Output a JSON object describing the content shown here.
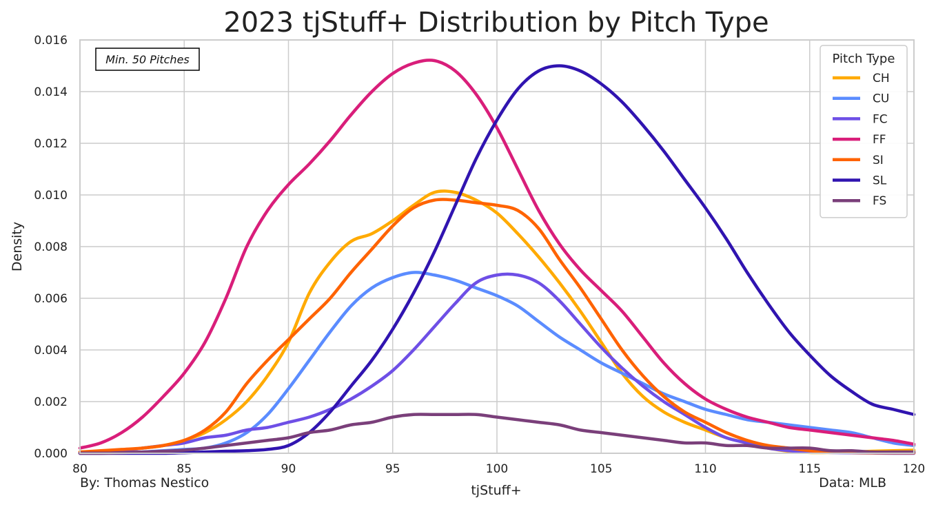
{
  "chart_data": {
    "type": "line",
    "title": "2023 tjStuff+ Distribution by Pitch Type",
    "xlabel": "tjStuff+",
    "ylabel": "Density",
    "xlim": [
      80,
      120
    ],
    "ylim": [
      0,
      0.016
    ],
    "x_ticks": [
      "80",
      "85",
      "90",
      "95",
      "100",
      "105",
      "110",
      "115",
      "120"
    ],
    "y_ticks": [
      "0.000",
      "0.002",
      "0.004",
      "0.006",
      "0.008",
      "0.010",
      "0.012",
      "0.014",
      "0.016"
    ],
    "grid": true,
    "legend": {
      "title": "Pitch Type",
      "position": "top-right"
    },
    "annotation": "Min. 50 Pitches",
    "credit_left": "By: Thomas Nestico",
    "credit_right": "Data: MLB",
    "x": [
      80,
      81,
      82,
      83,
      84,
      85,
      86,
      87,
      88,
      89,
      90,
      91,
      92,
      93,
      94,
      95,
      96,
      97,
      98,
      99,
      100,
      101,
      102,
      103,
      104,
      105,
      106,
      107,
      108,
      109,
      110,
      111,
      112,
      113,
      114,
      115,
      116,
      117,
      118,
      119,
      120
    ],
    "series": [
      {
        "name": "CH",
        "color": "#FFAA00",
        "values": [
          5e-05,
          7e-05,
          0.0001,
          0.0002,
          0.0003,
          0.0005,
          0.0008,
          0.0013,
          0.002,
          0.003,
          0.0043,
          0.0062,
          0.0074,
          0.0082,
          0.0085,
          0.009,
          0.0096,
          0.0101,
          0.0101,
          0.0098,
          0.0093,
          0.0085,
          0.0076,
          0.0066,
          0.0055,
          0.0043,
          0.0031,
          0.0022,
          0.0016,
          0.0012,
          0.0009,
          0.0006,
          0.0004,
          0.0002,
          8e-05,
          3e-05,
          3e-05,
          5e-05,
          8e-05,
          0.0001,
          0.00012
        ]
      },
      {
        "name": "CU",
        "color": "#5B8CFF",
        "values": [
          0.0,
          0.0,
          2e-05,
          5e-05,
          0.0001,
          0.00015,
          0.0002,
          0.0004,
          0.0008,
          0.0015,
          0.0025,
          0.0036,
          0.0047,
          0.0057,
          0.0064,
          0.0068,
          0.007,
          0.0069,
          0.0067,
          0.0064,
          0.0061,
          0.0057,
          0.0051,
          0.0045,
          0.004,
          0.0035,
          0.0031,
          0.0027,
          0.0023,
          0.002,
          0.0017,
          0.0015,
          0.0013,
          0.0012,
          0.0011,
          0.001,
          0.0009,
          0.0008,
          0.0006,
          0.0004,
          0.0003
        ]
      },
      {
        "name": "FC",
        "color": "#6E4FE6",
        "values": [
          0.0,
          5e-05,
          0.0001,
          0.0002,
          0.0003,
          0.0004,
          0.0006,
          0.0007,
          0.0009,
          0.001,
          0.0012,
          0.0014,
          0.0017,
          0.0021,
          0.0026,
          0.0032,
          0.004,
          0.0049,
          0.0058,
          0.0066,
          0.0069,
          0.0069,
          0.0066,
          0.0059,
          0.005,
          0.0041,
          0.0033,
          0.0026,
          0.002,
          0.0015,
          0.001,
          0.0006,
          0.0004,
          0.0002,
          0.0001,
          5e-05,
          3e-05,
          2e-05,
          1e-05,
          0.0,
          0.0
        ]
      },
      {
        "name": "FF",
        "color": "#D91E7A",
        "values": [
          0.0002,
          0.0004,
          0.0008,
          0.0014,
          0.0022,
          0.0031,
          0.0043,
          0.006,
          0.008,
          0.0094,
          0.0104,
          0.0112,
          0.0121,
          0.0131,
          0.014,
          0.0147,
          0.0151,
          0.0152,
          0.0148,
          0.0139,
          0.0126,
          0.011,
          0.0094,
          0.0081,
          0.0071,
          0.0063,
          0.0055,
          0.0045,
          0.0035,
          0.0027,
          0.0021,
          0.0017,
          0.0014,
          0.0012,
          0.001,
          0.0009,
          0.0008,
          0.0007,
          0.0006,
          0.0005,
          0.00035
        ]
      },
      {
        "name": "SI",
        "color": "#FF6300",
        "values": [
          5e-05,
          0.0001,
          0.00015,
          0.0002,
          0.0003,
          0.0005,
          0.0009,
          0.0016,
          0.0027,
          0.0036,
          0.0044,
          0.0052,
          0.006,
          0.007,
          0.0079,
          0.0088,
          0.0095,
          0.0098,
          0.0098,
          0.0097,
          0.0096,
          0.0094,
          0.0087,
          0.0075,
          0.0064,
          0.0052,
          0.004,
          0.003,
          0.0022,
          0.0016,
          0.0012,
          0.0008,
          0.0005,
          0.0003,
          0.0002,
          0.0001,
          5e-05,
          3e-05,
          2e-05,
          2e-05,
          2e-05
        ]
      },
      {
        "name": "SL",
        "color": "#3014B0",
        "values": [
          0.0,
          0.0,
          0.0,
          0.0,
          0.0,
          2e-05,
          5e-05,
          8e-05,
          0.0001,
          0.00015,
          0.0003,
          0.0008,
          0.0016,
          0.0026,
          0.0036,
          0.0048,
          0.0062,
          0.0078,
          0.0096,
          0.0114,
          0.0129,
          0.0141,
          0.0148,
          0.015,
          0.0148,
          0.0143,
          0.0136,
          0.0127,
          0.0117,
          0.0106,
          0.0095,
          0.0083,
          0.007,
          0.0058,
          0.0047,
          0.0038,
          0.003,
          0.0024,
          0.0019,
          0.0017,
          0.0015
        ]
      },
      {
        "name": "FS",
        "color": "#7A3F7A",
        "values": [
          0.0,
          0.0,
          2e-05,
          5e-05,
          8e-05,
          0.00012,
          0.0002,
          0.0003,
          0.0004,
          0.0005,
          0.0006,
          0.0008,
          0.0009,
          0.0011,
          0.0012,
          0.0014,
          0.0015,
          0.0015,
          0.0015,
          0.0015,
          0.0014,
          0.0013,
          0.0012,
          0.0011,
          0.0009,
          0.0008,
          0.0007,
          0.0006,
          0.0005,
          0.0004,
          0.0004,
          0.0003,
          0.0003,
          0.0002,
          0.0002,
          0.0002,
          0.0001,
          0.0001,
          5e-05,
          5e-05,
          5e-05
        ]
      }
    ]
  }
}
